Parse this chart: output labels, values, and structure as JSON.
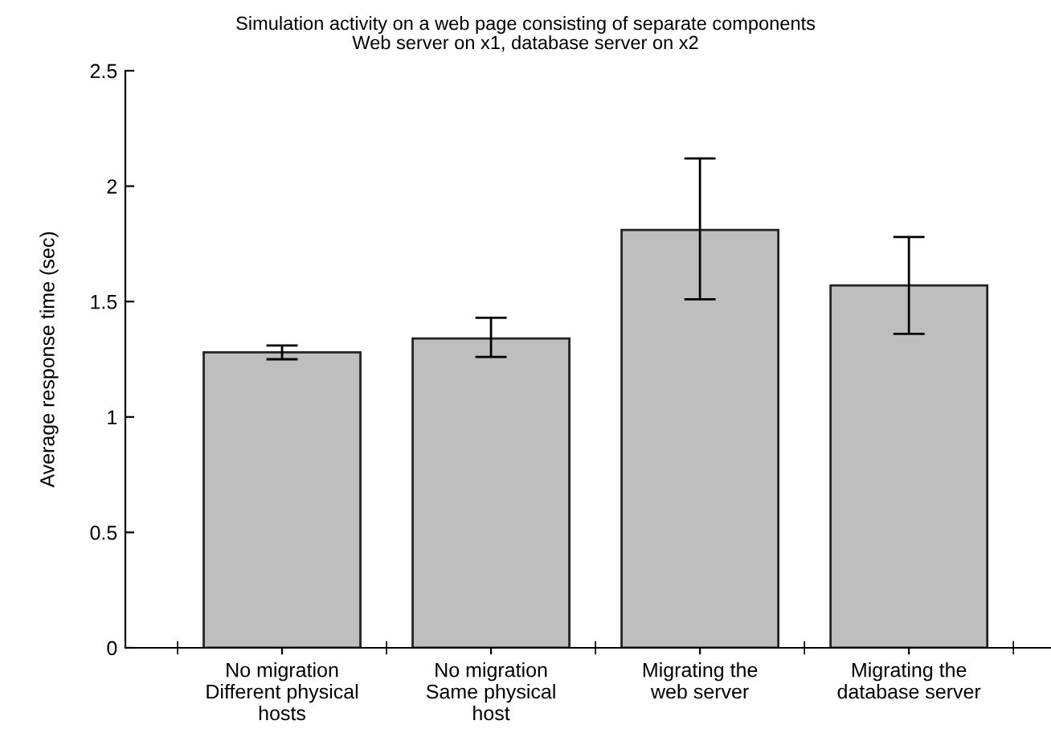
{
  "chart_data": {
    "type": "bar",
    "title": "Simulation activity on a web page consisting of separate components",
    "subtitle": "Web server on x1, database server on x2",
    "ylabel": "Average response time (sec)",
    "categories": [
      "No migration\nDifferent physical\nhosts",
      "No migration\nSame physical\nhost",
      "Migrating the\nweb server",
      "Migrating the\ndatabase server"
    ],
    "values": [
      1.28,
      1.34,
      1.81,
      1.57
    ],
    "errors": [
      [
        1.25,
        1.31
      ],
      [
        1.26,
        1.43
      ],
      [
        1.51,
        2.12
      ],
      [
        1.36,
        1.78
      ]
    ],
    "color": "#bebebe",
    "ylim": [
      0,
      2.5
    ],
    "yticks": [
      0,
      0.5,
      1,
      1.5,
      2,
      2.5
    ],
    "grid": false,
    "legend": false
  }
}
